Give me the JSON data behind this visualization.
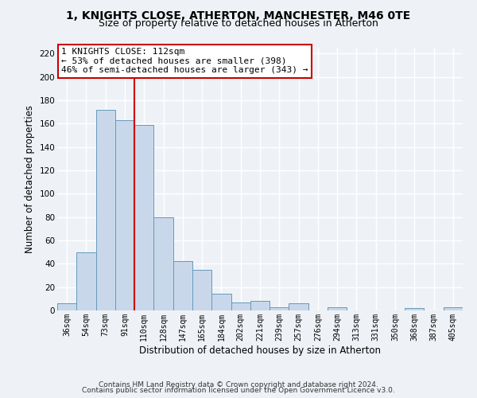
{
  "title1": "1, KNIGHTS CLOSE, ATHERTON, MANCHESTER, M46 0TE",
  "title2": "Size of property relative to detached houses in Atherton",
  "xlabel": "Distribution of detached houses by size in Atherton",
  "ylabel": "Number of detached properties",
  "bar_labels": [
    "36sqm",
    "54sqm",
    "73sqm",
    "91sqm",
    "110sqm",
    "128sqm",
    "147sqm",
    "165sqm",
    "184sqm",
    "202sqm",
    "221sqm",
    "239sqm",
    "257sqm",
    "276sqm",
    "294sqm",
    "313sqm",
    "331sqm",
    "350sqm",
    "368sqm",
    "387sqm",
    "405sqm"
  ],
  "bar_values": [
    6,
    50,
    172,
    163,
    159,
    80,
    42,
    35,
    14,
    7,
    8,
    3,
    6,
    0,
    3,
    0,
    0,
    0,
    2,
    0,
    3
  ],
  "bar_color": "#c8d8ea",
  "bar_edge_color": "#6699bb",
  "vline_x_index": 4,
  "vline_color": "#cc0000",
  "annotation_line1": "1 KNIGHTS CLOSE: 112sqm",
  "annotation_line2": "← 53% of detached houses are smaller (398)",
  "annotation_line3": "46% of semi-detached houses are larger (343) →",
  "annotation_box_color": "#ffffff",
  "annotation_box_edge_color": "#cc0000",
  "ylim": [
    0,
    225
  ],
  "yticks": [
    0,
    20,
    40,
    60,
    80,
    100,
    120,
    140,
    160,
    180,
    200,
    220
  ],
  "background_color": "#eef2f7",
  "grid_color": "#ffffff",
  "footer1": "Contains HM Land Registry data © Crown copyright and database right 2024.",
  "footer2": "Contains public sector information licensed under the Open Government Licence v3.0.",
  "title1_fontsize": 10,
  "title2_fontsize": 9,
  "annotation_fontsize": 8,
  "footer_fontsize": 6.5
}
